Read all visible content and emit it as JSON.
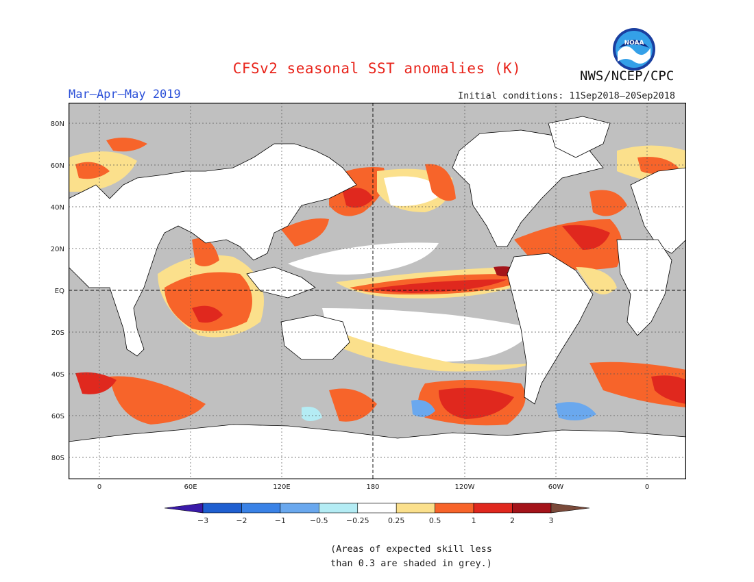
{
  "title": "CFSv2 seasonal SST anomalies (K)",
  "org": "NWS/NCEP/CPC",
  "logo_text": "NOAA",
  "period": "Mar–Apr–May 2019",
  "initial_conditions": "Initial conditions: 11Sep2018–20Sep2018",
  "lat_labels": [
    "80N",
    "60N",
    "40N",
    "20N",
    "EQ",
    "20S",
    "40S",
    "60S",
    "80S"
  ],
  "lon_labels": [
    "0",
    "60E",
    "120E",
    "180",
    "120W",
    "60W",
    "0"
  ],
  "colorbar": {
    "labels": [
      "−3",
      "−2",
      "−1",
      "−0.5",
      "−0.25",
      "0.25",
      "0.5",
      "1",
      "2",
      "3"
    ],
    "colors": [
      "#3a1aa8",
      "#1f5fd0",
      "#3a82e6",
      "#6aa8ee",
      "#b4ecf4",
      "#ffffff",
      "#fbe08c",
      "#f7642a",
      "#e0281e",
      "#a4141a",
      "#7a4a3a"
    ]
  },
  "note_line1": "(Areas of expected skill less",
  "note_line2": "than 0.3 are shaded in grey.)",
  "colors": {
    "grey_mask": "#c0c0c0",
    "land": "#ffffff",
    "coast": "#000000",
    "weak_warm": "#fbe08c",
    "warm": "#f7642a",
    "hot": "#e0281e",
    "very_hot": "#a4141a",
    "cool": "#6aa8ee",
    "light_cool": "#b4ecf4"
  }
}
